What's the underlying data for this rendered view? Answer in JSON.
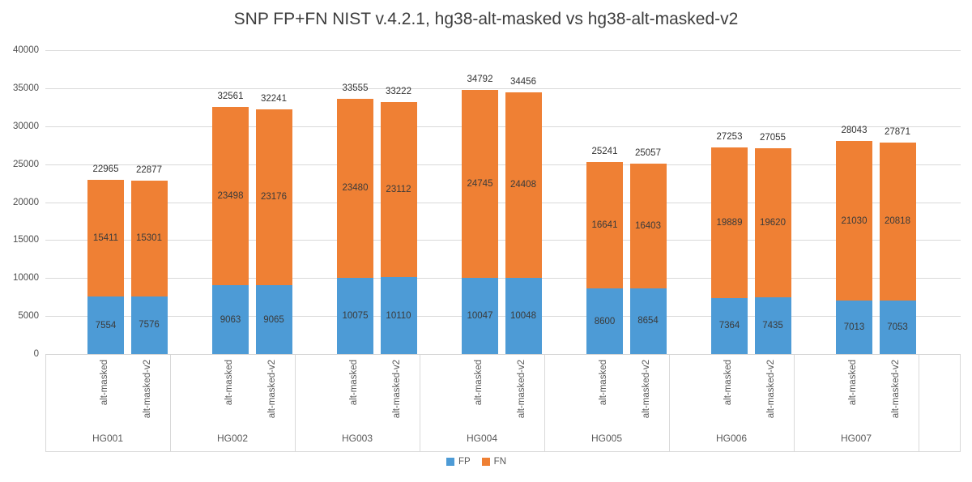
{
  "title": "SNP FP+FN NIST v.4.2.1, hg38-alt-masked vs hg38-alt-masked-v2",
  "chart_data": {
    "type": "bar",
    "stacked": true,
    "title": "SNP FP+FN NIST v.4.2.1, hg38-alt-masked vs hg38-alt-masked-v2",
    "categories": [
      "HG001",
      "HG002",
      "HG003",
      "HG004",
      "HG005",
      "HG006",
      "HG007"
    ],
    "subcategories": [
      "alt-masked",
      "alt-masked-v2"
    ],
    "series": [
      {
        "name": "FP",
        "color": "#4d9bd6",
        "values": [
          [
            7554,
            7576
          ],
          [
            9063,
            9065
          ],
          [
            10075,
            10110
          ],
          [
            10047,
            10048
          ],
          [
            8600,
            8654
          ],
          [
            7364,
            7435
          ],
          [
            7013,
            7053
          ]
        ]
      },
      {
        "name": "FN",
        "color": "#ef8034",
        "values": [
          [
            15411,
            15301
          ],
          [
            23498,
            23176
          ],
          [
            23480,
            23112
          ],
          [
            24745,
            24408
          ],
          [
            16641,
            16403
          ],
          [
            19889,
            19620
          ],
          [
            21030,
            20818
          ]
        ]
      }
    ],
    "totals": [
      [
        22965,
        22877
      ],
      [
        32561,
        32241
      ],
      [
        33555,
        33222
      ],
      [
        34792,
        34456
      ],
      [
        25241,
        25057
      ],
      [
        27253,
        27055
      ],
      [
        28043,
        27871
      ]
    ],
    "y_axis": {
      "min": 0,
      "max": 40000,
      "step": 5000,
      "ticks": [
        "0",
        "5000",
        "10000",
        "15000",
        "20000",
        "25000",
        "30000",
        "35000",
        "40000"
      ]
    },
    "grid": true,
    "legend_position": "bottom",
    "legend": [
      {
        "label": "FP",
        "color": "#4d9bd6"
      },
      {
        "label": "FN",
        "color": "#ef8034"
      }
    ]
  }
}
